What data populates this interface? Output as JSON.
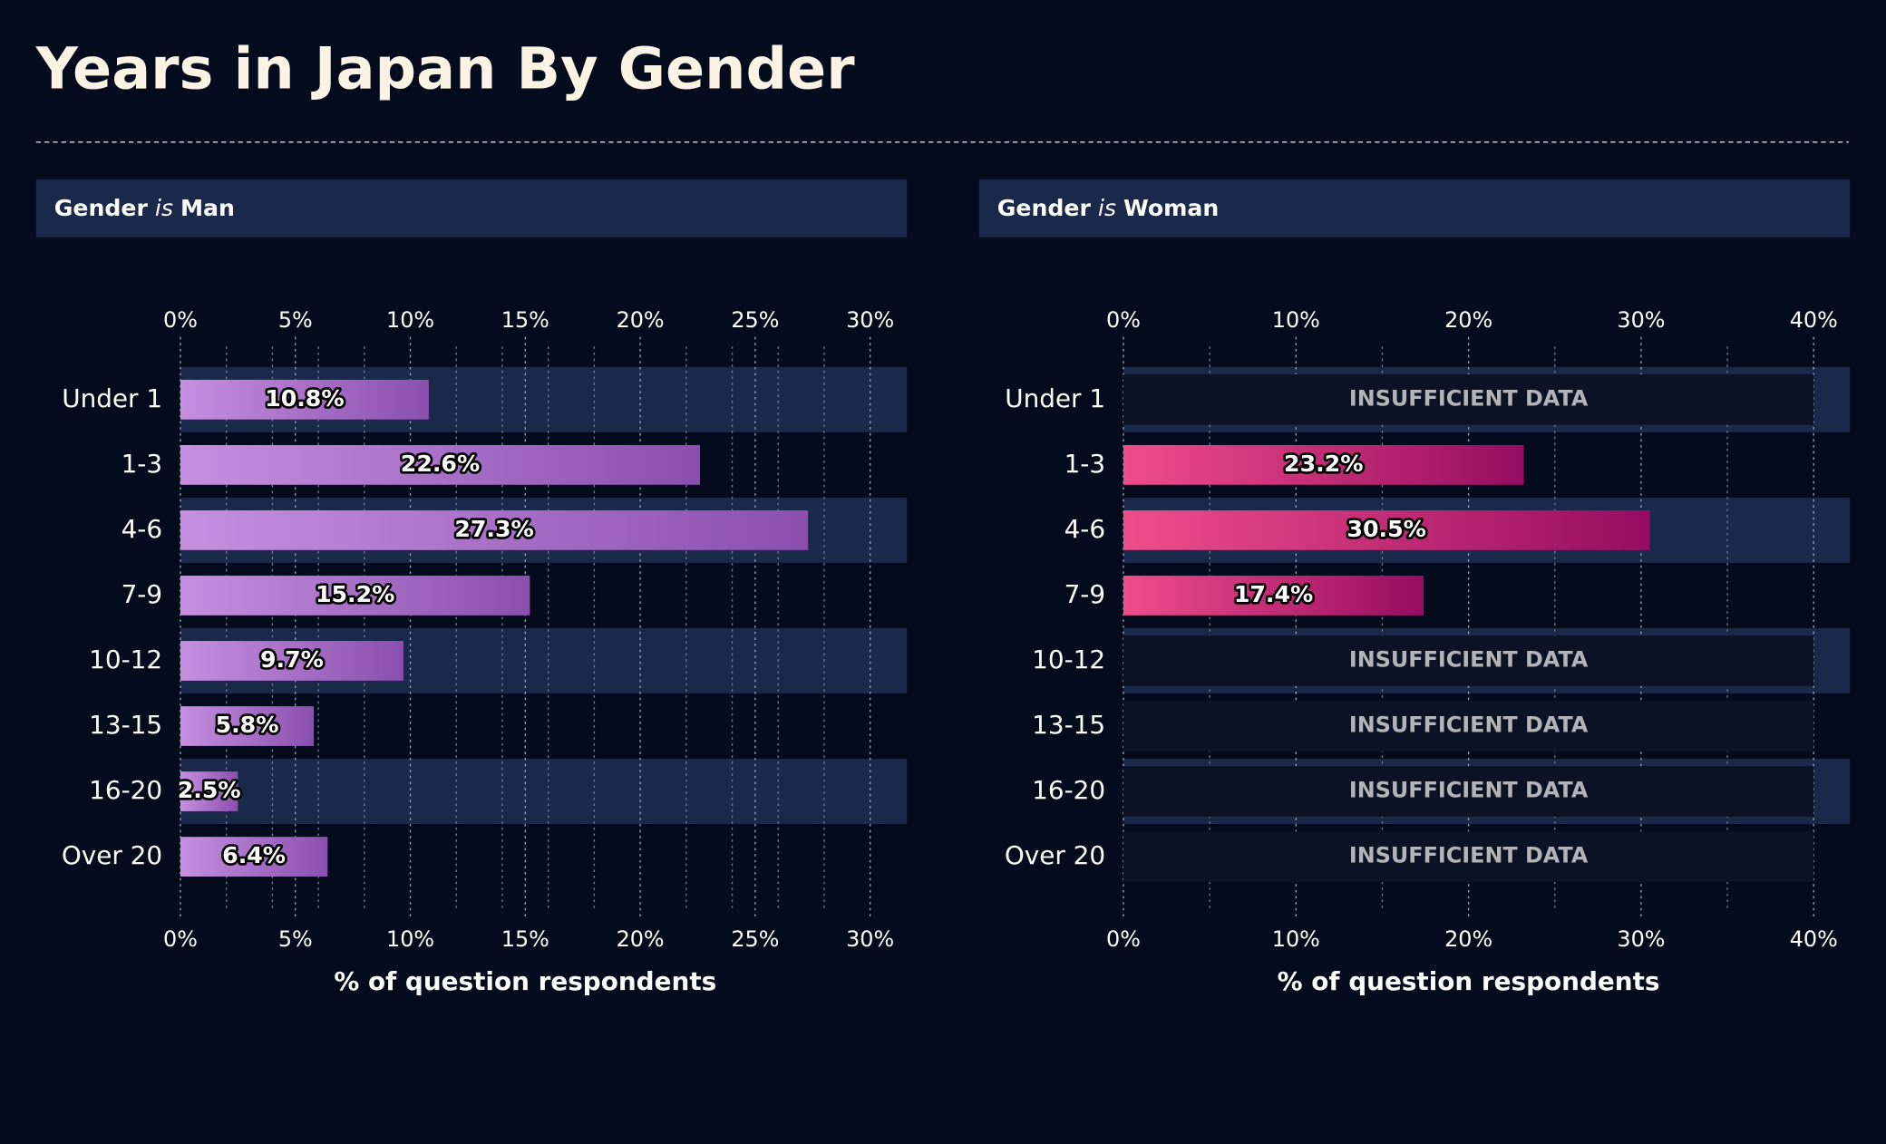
{
  "title": "Years in Japan By Gender",
  "chart_data": [
    {
      "type": "bar",
      "orientation": "horizontal",
      "facet_field": "Gender",
      "facet_operator": "is",
      "facet_value": "Man",
      "categories": [
        "Under 1",
        "1-3",
        "4-6",
        "7-9",
        "10-12",
        "13-15",
        "16-20",
        "Over 20"
      ],
      "values": [
        10.8,
        22.6,
        27.3,
        15.2,
        9.7,
        5.8,
        2.5,
        6.4
      ],
      "value_labels": [
        "10.8%",
        "22.6%",
        "27.3%",
        "15.2%",
        "9.7%",
        "5.8%",
        "2.5%",
        "6.4%"
      ],
      "colors": [
        "#c690e0",
        "#8a4fae"
      ],
      "xlim": [
        0,
        31.6
      ],
      "xticks": [
        {
          "value": 0,
          "label": "0%"
        },
        {
          "value": 5,
          "label": "5%"
        },
        {
          "value": 10,
          "label": "10%"
        },
        {
          "value": 15,
          "label": "15%"
        },
        {
          "value": 20,
          "label": "20%"
        },
        {
          "value": 25,
          "label": "25%"
        },
        {
          "value": 30,
          "label": "30%"
        }
      ],
      "minor_xticks": [
        2,
        4,
        6,
        8,
        12,
        14,
        16,
        18,
        22,
        24,
        26,
        28
      ],
      "xlabel": "% of question respondents"
    },
    {
      "type": "bar",
      "orientation": "horizontal",
      "facet_field": "Gender",
      "facet_operator": "is",
      "facet_value": "Woman",
      "categories": [
        "Under 1",
        "1-3",
        "4-6",
        "7-9",
        "10-12",
        "13-15",
        "16-20",
        "Over 20"
      ],
      "values": [
        null,
        23.2,
        30.5,
        17.4,
        null,
        null,
        null,
        null
      ],
      "value_labels": [
        null,
        "23.2%",
        "30.5%",
        "17.4%",
        null,
        null,
        null,
        null
      ],
      "null_label": "INSUFFICIENT DATA",
      "colors": [
        "#ee4d8b",
        "#960c60"
      ],
      "xlim": [
        0,
        42.1
      ],
      "xticks": [
        {
          "value": 0,
          "label": "0%"
        },
        {
          "value": 10,
          "label": "10%"
        },
        {
          "value": 20,
          "label": "20%"
        },
        {
          "value": 30,
          "label": "30%"
        },
        {
          "value": 40,
          "label": "40%"
        }
      ],
      "minor_xticks": [
        5,
        15,
        25,
        35
      ],
      "xlabel": "% of question respondents"
    }
  ]
}
